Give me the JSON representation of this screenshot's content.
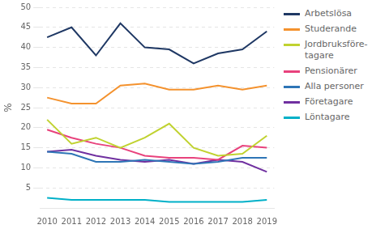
{
  "chart_data": {
    "type": "line",
    "x": [
      2010,
      2011,
      2012,
      2013,
      2014,
      2015,
      2016,
      2017,
      2018,
      2019
    ],
    "series": [
      {
        "name": "Arbetslösa",
        "color": "#1f3864",
        "values": [
          42.5,
          45.0,
          38.0,
          46.0,
          40.0,
          39.5,
          36.0,
          38.5,
          39.5,
          44.0
        ]
      },
      {
        "name": "Studerande",
        "color": "#f4922e",
        "values": [
          27.5,
          26.0,
          26.0,
          30.5,
          31.0,
          29.5,
          29.5,
          30.5,
          29.5,
          30.5
        ]
      },
      {
        "name": "Jordbruksföre-\ntagare",
        "color": "#c0d230",
        "values": [
          22.0,
          16.0,
          17.5,
          15.0,
          17.5,
          21.0,
          15.0,
          13.0,
          13.5,
          18.0
        ]
      },
      {
        "name": "Pensionärer",
        "color": "#e8427c",
        "values": [
          19.5,
          17.5,
          16.0,
          15.0,
          13.0,
          12.5,
          12.5,
          12.0,
          15.5,
          15.0
        ]
      },
      {
        "name": "Alla personer",
        "color": "#2e75b6",
        "values": [
          14.0,
          13.5,
          11.5,
          11.5,
          12.0,
          11.5,
          11.0,
          11.5,
          12.5,
          12.5
        ]
      },
      {
        "name": "Företagare",
        "color": "#7030a0",
        "values": [
          14.0,
          14.5,
          13.0,
          12.0,
          11.5,
          12.0,
          11.0,
          12.0,
          11.5,
          9.0
        ]
      },
      {
        "name": "Löntagare",
        "color": "#00b0c8",
        "values": [
          2.5,
          2.0,
          2.0,
          2.0,
          2.0,
          1.5,
          1.5,
          1.5,
          1.5,
          2.0
        ]
      }
    ],
    "ylabel": "%",
    "xlim": [
      2009.7,
      2019.3
    ],
    "xticks": [
      2010,
      2011,
      2012,
      2013,
      2014,
      2015,
      2016,
      2017,
      2018,
      2019
    ],
    "ylim": [
      0,
      50
    ],
    "yticks": [
      5,
      10,
      15,
      20,
      25,
      30,
      35,
      40,
      45,
      50
    ],
    "grid": true,
    "legend": "right"
  }
}
